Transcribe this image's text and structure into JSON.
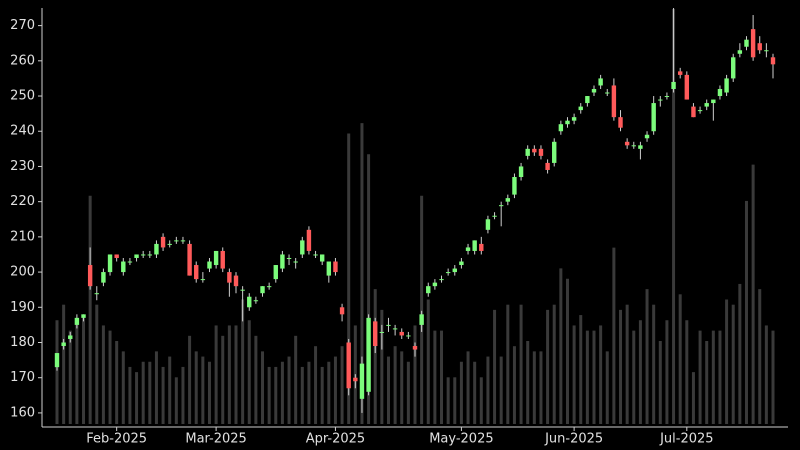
{
  "chart_data": {
    "type": "candlestick",
    "categories": [
      null,
      null,
      null,
      null,
      null,
      null,
      null,
      null,
      null,
      "Feb-2025",
      null,
      null,
      null,
      null,
      null,
      null,
      null,
      null,
      null,
      null,
      null,
      null,
      null,
      null,
      "Mar-2025",
      null,
      null,
      null,
      null,
      null,
      null,
      null,
      null,
      null,
      null,
      null,
      null,
      null,
      null,
      null,
      null,
      null,
      "Apr-2025",
      null,
      null,
      null,
      null,
      null,
      null,
      null,
      null,
      null,
      null,
      null,
      null,
      null,
      null,
      null,
      null,
      null,
      null,
      "May-2025",
      null,
      null,
      null,
      null,
      null,
      null,
      null,
      null,
      null,
      null,
      null,
      null,
      null,
      null,
      null,
      null,
      "Jun-2025",
      null,
      null,
      null,
      null,
      null,
      null,
      null,
      null,
      null,
      null,
      null,
      null,
      null,
      null,
      null,
      null,
      "Jul-2025",
      null,
      null,
      null,
      null,
      null,
      null,
      null,
      null,
      null,
      null,
      null,
      null,
      null
    ],
    "open": [
      173,
      179,
      181,
      185,
      187,
      202,
      194,
      197,
      200,
      205,
      200,
      203,
      204,
      205,
      205,
      205,
      210,
      208,
      209,
      209,
      208,
      202,
      198,
      201,
      202,
      206,
      200,
      199,
      195,
      190,
      192,
      194,
      196,
      198,
      201,
      204,
      203,
      205,
      212,
      205,
      203,
      199,
      203,
      190,
      180,
      170,
      164,
      166,
      186,
      183,
      185,
      184,
      183,
      182,
      179,
      185,
      194,
      196,
      198,
      200,
      200,
      202,
      206,
      206,
      208,
      212,
      216,
      219,
      220,
      222,
      227,
      233,
      235,
      235,
      231,
      231,
      240,
      242,
      243,
      246,
      248,
      251,
      253,
      251,
      253,
      244,
      237,
      236,
      235,
      238,
      240,
      249,
      250,
      252,
      257,
      256,
      247,
      246,
      247,
      248,
      250,
      251,
      255,
      262,
      264,
      269,
      265,
      263,
      261
    ],
    "high": [
      177,
      181,
      183,
      188,
      188,
      207,
      196,
      201,
      205,
      205,
      204,
      204,
      205,
      206,
      206,
      209,
      211,
      209,
      210,
      210,
      209,
      203,
      200,
      204,
      206,
      207,
      201,
      200,
      196,
      194,
      193,
      196,
      197,
      202,
      206,
      205,
      204,
      210,
      213,
      206,
      205,
      203,
      204,
      191,
      181,
      171,
      176,
      188,
      187,
      185,
      187,
      185,
      184,
      183,
      180,
      189,
      197,
      198,
      199,
      201,
      202,
      204,
      208,
      209,
      210,
      216,
      217,
      220,
      222,
      228,
      231,
      236,
      236,
      236,
      232,
      238,
      243,
      244,
      245,
      248,
      250,
      253,
      256,
      252,
      255,
      246,
      238,
      237,
      237,
      240,
      250,
      250,
      251,
      275,
      258,
      257,
      248,
      247,
      249,
      249,
      253,
      256,
      262,
      265,
      267,
      273,
      267,
      265,
      262
    ],
    "low": [
      172,
      178,
      180,
      184,
      186,
      195,
      192,
      196,
      199,
      203,
      199,
      202,
      203,
      204,
      204,
      204,
      206,
      207,
      208,
      208,
      199,
      197,
      197,
      200,
      201,
      200,
      193,
      194,
      186,
      189,
      191,
      193,
      195,
      197,
      200,
      202,
      201,
      204,
      205,
      204,
      202,
      197,
      199,
      186,
      165,
      167,
      160,
      165,
      177,
      178,
      183,
      182,
      181,
      181,
      176,
      183,
      193,
      195,
      197,
      199,
      199,
      201,
      205,
      205,
      205,
      211,
      215,
      213,
      219,
      221,
      226,
      232,
      233,
      232,
      228,
      230,
      239,
      241,
      242,
      245,
      247,
      250,
      252,
      250,
      243,
      240,
      235,
      235,
      232,
      237,
      239,
      247,
      249,
      251,
      255,
      249,
      244,
      245,
      246,
      243,
      249,
      250,
      254,
      261,
      263,
      260,
      262,
      261,
      255
    ],
    "close": [
      177,
      180,
      182,
      187,
      188,
      196,
      194,
      200,
      205,
      204,
      203,
      203,
      205,
      205,
      205,
      208,
      207,
      208,
      209,
      209,
      199,
      198,
      198,
      203,
      206,
      201,
      197,
      196,
      195,
      193,
      192,
      196,
      196,
      202,
      205,
      204,
      203,
      209,
      206,
      205,
      205,
      203,
      200,
      188,
      167,
      169,
      174,
      187,
      179,
      183,
      185,
      184,
      182,
      182,
      178,
      188,
      196,
      197,
      198,
      200,
      201,
      203,
      207,
      209,
      206,
      215,
      216,
      219,
      221,
      227,
      230,
      235,
      234,
      233,
      229,
      237,
      242,
      243,
      244,
      247,
      250,
      252,
      255,
      251,
      244,
      241,
      236,
      236,
      236,
      239,
      248,
      249,
      250,
      254,
      256,
      249,
      244,
      246,
      248,
      249,
      252,
      255,
      261,
      263,
      266,
      261,
      263,
      263,
      259
    ],
    "volume": [
      100,
      115,
      90,
      100,
      105,
      220,
      115,
      95,
      90,
      80,
      70,
      55,
      50,
      60,
      60,
      70,
      55,
      65,
      45,
      55,
      85,
      70,
      65,
      60,
      95,
      85,
      95,
      95,
      120,
      100,
      85,
      70,
      55,
      55,
      60,
      65,
      85,
      55,
      60,
      75,
      55,
      60,
      65,
      75,
      280,
      95,
      290,
      260,
      130,
      110,
      65,
      75,
      70,
      60,
      95,
      220,
      120,
      90,
      90,
      45,
      45,
      60,
      70,
      60,
      45,
      65,
      110,
      65,
      115,
      75,
      115,
      80,
      70,
      70,
      110,
      115,
      150,
      140,
      95,
      105,
      90,
      90,
      95,
      70,
      170,
      110,
      115,
      90,
      100,
      130,
      115,
      80,
      100,
      400,
      125,
      100,
      50,
      90,
      80,
      90,
      90,
      120,
      115,
      135,
      215,
      250,
      130,
      95,
      90
    ],
    "up_color": "#7CFC7C",
    "down_color": "#FF5A5A",
    "wick_color": "#d0d0d0",
    "volume_color": "#3a3a3a",
    "ylim": [
      156,
      275
    ],
    "yticks": [
      160,
      170,
      180,
      190,
      200,
      210,
      220,
      230,
      240,
      250,
      260,
      270
    ]
  }
}
